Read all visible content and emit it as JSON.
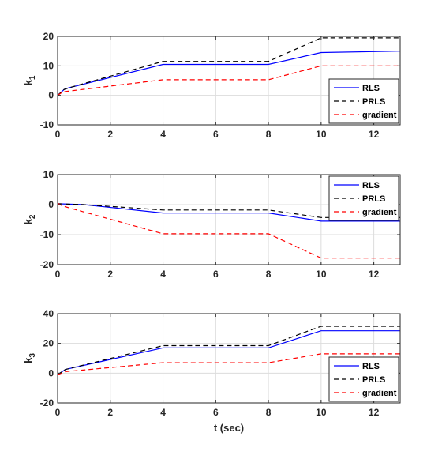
{
  "chart_data": [
    {
      "type": "line",
      "ylabel": "k",
      "ylabel_sub": "1",
      "xlim": [
        0,
        13
      ],
      "ylim": [
        -10,
        20
      ],
      "xticks": [
        0,
        2,
        4,
        6,
        8,
        10,
        12
      ],
      "yticks": [
        -10,
        0,
        10,
        20
      ],
      "grid": true,
      "legend_position": "bottom-right",
      "series": [
        {
          "name": "RLS",
          "color": "#0000ff",
          "style": "solid",
          "x": [
            0,
            0.25,
            0.4,
            4,
            8,
            10,
            13
          ],
          "y": [
            0,
            2,
            2.5,
            10.5,
            10.5,
            14.5,
            15
          ]
        },
        {
          "name": "PRLS",
          "color": "#000000",
          "style": "dashed",
          "x": [
            0,
            0.25,
            0.4,
            4,
            8,
            10,
            13
          ],
          "y": [
            0,
            2,
            2.5,
            11.5,
            11.5,
            19.5,
            19.5
          ]
        },
        {
          "name": "gradient",
          "color": "#ff0000",
          "style": "dashed",
          "x": [
            0,
            0.2,
            4,
            8,
            10,
            13
          ],
          "y": [
            0,
            1.2,
            5.3,
            5.3,
            10,
            10
          ]
        }
      ]
    },
    {
      "type": "line",
      "ylabel": "k",
      "ylabel_sub": "2",
      "xlim": [
        0,
        13
      ],
      "ylim": [
        -20,
        10
      ],
      "xticks": [
        0,
        2,
        4,
        6,
        8,
        10,
        12
      ],
      "yticks": [
        -20,
        -10,
        0,
        10
      ],
      "grid": true,
      "legend_position": "top-right",
      "series": [
        {
          "name": "RLS",
          "color": "#0000ff",
          "style": "solid",
          "x": [
            0,
            1,
            4,
            8,
            10,
            13
          ],
          "y": [
            0.3,
            0,
            -2.8,
            -2.8,
            -5.5,
            -5.5
          ]
        },
        {
          "name": "PRLS",
          "color": "#000000",
          "style": "dashed",
          "x": [
            0,
            1,
            4,
            8,
            10,
            13
          ],
          "y": [
            0.3,
            0,
            -1.8,
            -1.8,
            -4.3,
            -4.3
          ]
        },
        {
          "name": "gradient",
          "color": "#ff0000",
          "style": "dashed",
          "x": [
            0,
            0.2,
            4,
            8,
            10,
            13
          ],
          "y": [
            0.5,
            -0.5,
            -9.7,
            -9.7,
            -17.8,
            -17.8
          ]
        }
      ]
    },
    {
      "type": "line",
      "ylabel": "k",
      "ylabel_sub": "3",
      "xlabel": "t (sec)",
      "xlim": [
        0,
        13
      ],
      "ylim": [
        -20,
        40
      ],
      "xticks": [
        0,
        2,
        4,
        6,
        8,
        10,
        12
      ],
      "yticks": [
        -20,
        0,
        20,
        40
      ],
      "grid": true,
      "legend_position": "bottom-right",
      "series": [
        {
          "name": "RLS",
          "color": "#0000ff",
          "style": "solid",
          "x": [
            0,
            0.3,
            4,
            8,
            10,
            13
          ],
          "y": [
            -1,
            2.5,
            17,
            17,
            28.5,
            28.5
          ]
        },
        {
          "name": "PRLS",
          "color": "#000000",
          "style": "dashed",
          "x": [
            0,
            0.3,
            4,
            8,
            10,
            13
          ],
          "y": [
            -1,
            2.5,
            18.5,
            18.5,
            31.5,
            31.5
          ]
        },
        {
          "name": "gradient",
          "color": "#ff0000",
          "style": "dashed",
          "x": [
            0,
            0.3,
            4,
            8,
            10,
            13
          ],
          "y": [
            -1,
            1,
            7,
            7,
            13,
            13
          ]
        }
      ]
    }
  ]
}
